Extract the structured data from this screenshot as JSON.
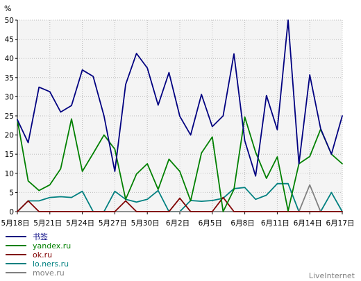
{
  "chart_data": {
    "type": "line",
    "ylabel": "%",
    "ylim": [
      0,
      50
    ],
    "yticks": [
      0,
      5,
      10,
      15,
      20,
      25,
      30,
      35,
      40,
      45,
      50
    ],
    "x": [
      "5月18日",
      "5月19日",
      "5月20日",
      "5月21日",
      "5月22日",
      "5月23日",
      "5月24日",
      "5月25日",
      "5月26日",
      "5月27日",
      "5月28日",
      "5月29日",
      "5月30日",
      "5月31日",
      "6月1日",
      "6月2日",
      "6月3日",
      "6月4日",
      "6月5日",
      "6月6日",
      "6月7日",
      "6月8日",
      "6月9日",
      "6月10日",
      "6月11日",
      "6月12日",
      "6月13日",
      "6月14日",
      "6月15日",
      "6月16日",
      "6月17日"
    ],
    "xticks": [
      "5月18日",
      "5月21日",
      "5月24日",
      "5月27日",
      "5月30日",
      "6月2日",
      "6月5日",
      "6月8日",
      "6月11日",
      "6月14日",
      "6月17日"
    ],
    "grid": true,
    "legend_position": "bottom-left",
    "series": [
      {
        "name": "书签",
        "color": "#000080",
        "values": [
          24,
          18,
          32.5,
          31.3,
          26,
          27.7,
          37,
          35.3,
          25,
          10.5,
          33.2,
          41.3,
          37.5,
          27.8,
          36.3,
          24.9,
          20,
          30.6,
          22.2,
          25,
          41.2,
          18.5,
          9.3,
          30.3,
          21.4,
          50,
          12.5,
          35.7,
          21.7,
          15,
          25
        ]
      },
      {
        "name": "yandex.ru",
        "color": "#008000",
        "values": [
          24,
          8,
          5.5,
          7,
          11.2,
          24.2,
          10.5,
          15.2,
          20,
          16.3,
          3.2,
          9.8,
          12.5,
          5.8,
          13.7,
          10.5,
          2.8,
          15.3,
          19.5,
          0,
          5.8,
          24.7,
          15.5,
          8.7,
          14.3,
          0.2,
          12.5,
          14.4,
          21.5,
          15,
          12.5
        ]
      },
      {
        "name": "ok.ru",
        "color": "#800000",
        "values": [
          0,
          2.8,
          0,
          0,
          0,
          0,
          0,
          0,
          0,
          0,
          2.8,
          0,
          0,
          0,
          0,
          3.5,
          0,
          0,
          0,
          3.7,
          0,
          0,
          0,
          0,
          0,
          0,
          0,
          0,
          0,
          0,
          0
        ]
      },
      {
        "name": "lo.ners.ru",
        "color": "#008080",
        "values": [
          0,
          2.8,
          2.8,
          3.7,
          3.9,
          3.7,
          5.3,
          0,
          0,
          5.3,
          3.2,
          2.5,
          3.2,
          5.5,
          0,
          0,
          2.9,
          2.7,
          2.9,
          3.5,
          6,
          6.3,
          3.2,
          4.3,
          7.3,
          7.3,
          0,
          0,
          0,
          5,
          0
        ]
      },
      {
        "name": "move.ru",
        "color": "#808080",
        "values": [
          0,
          0,
          0,
          0,
          0,
          0,
          0,
          0,
          0,
          0,
          0,
          0,
          0,
          0,
          0,
          0,
          0,
          0,
          0,
          0,
          0,
          0,
          0,
          0,
          0,
          0,
          0,
          7,
          0,
          0,
          0
        ]
      }
    ]
  },
  "footer": {
    "brand": "LiveInternet"
  }
}
